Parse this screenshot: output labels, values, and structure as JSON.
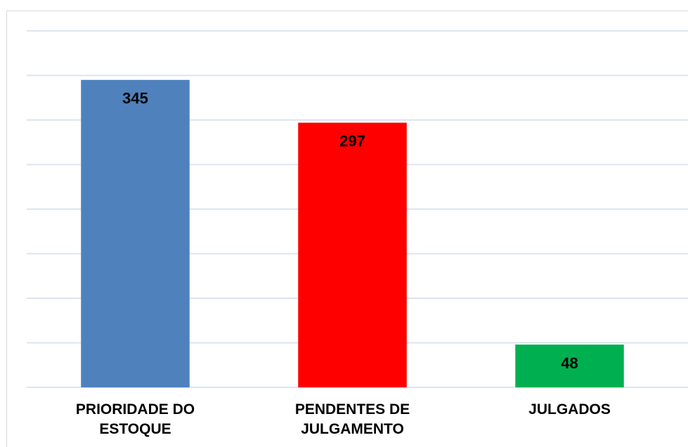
{
  "chart_data": {
    "type": "bar",
    "categories": [
      "PRIORIDADE DO ESTOQUE",
      "PENDENTES DE JULGAMENTO",
      "JULGADOS"
    ],
    "values": [
      345,
      297,
      48
    ],
    "colors": [
      "#4f81bd",
      "#ff0000",
      "#00b050"
    ],
    "ylim": [
      0,
      400
    ],
    "yticks": [
      0,
      50,
      100,
      150,
      200,
      250,
      300,
      350,
      400
    ],
    "grid": true
  }
}
